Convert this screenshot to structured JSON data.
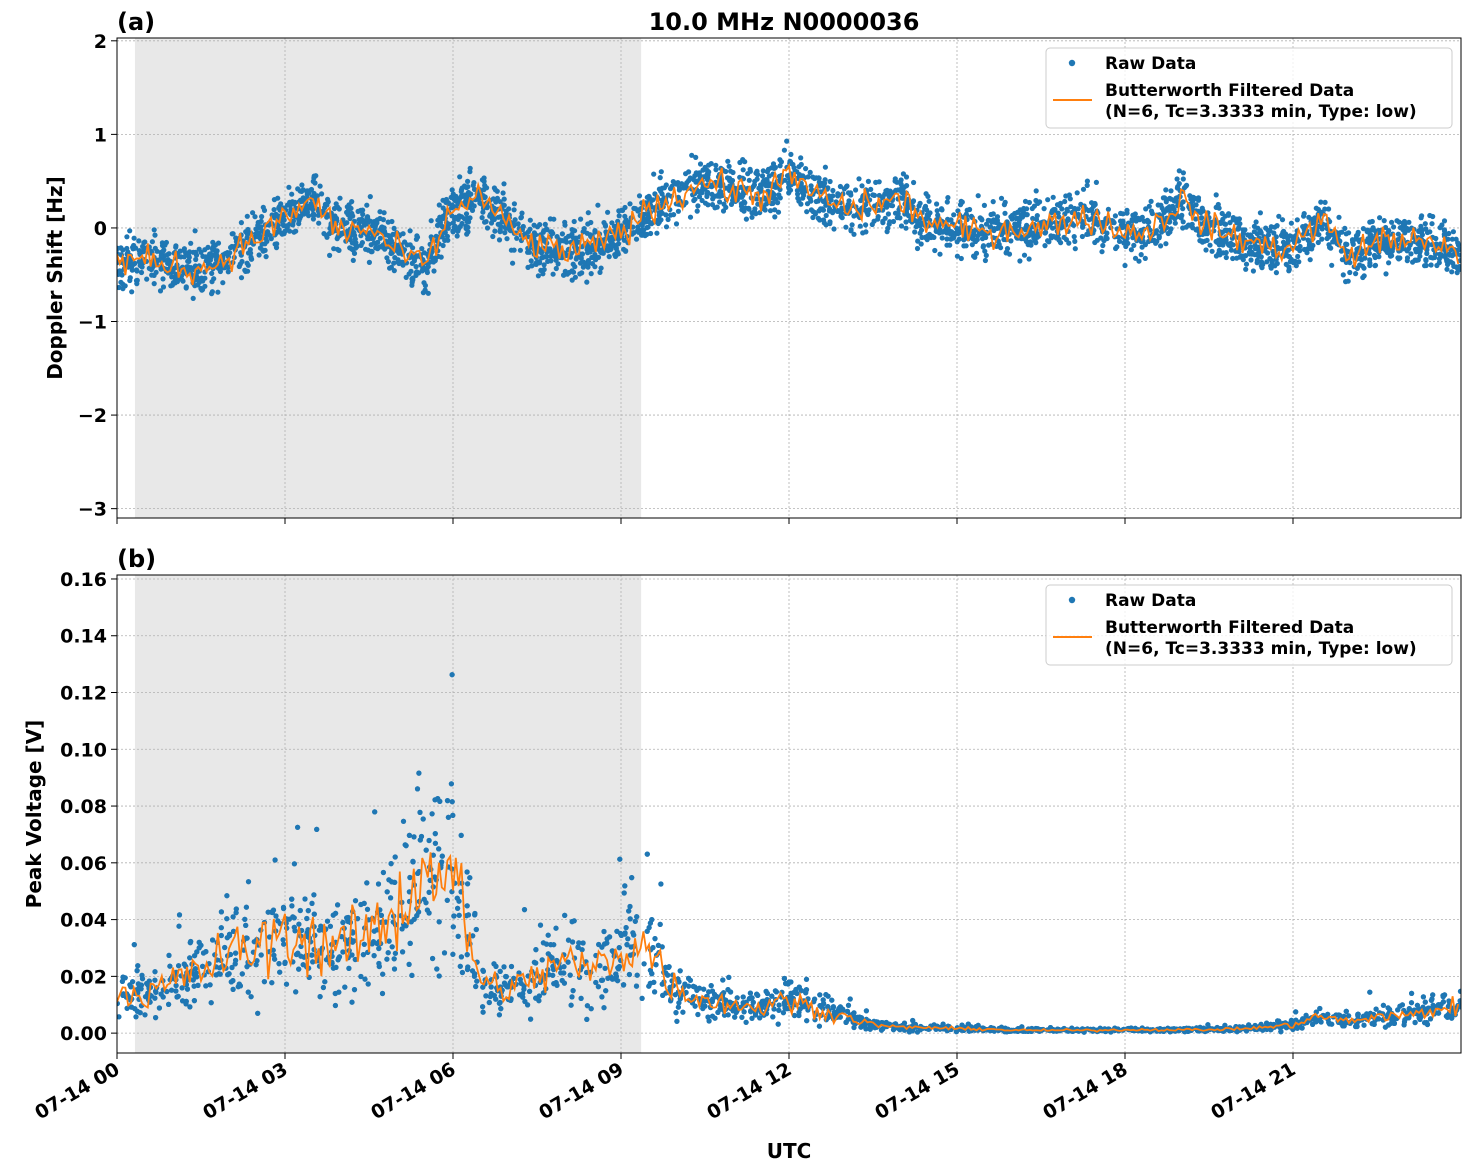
{
  "title": "10.0 MHz N0000036",
  "xlabel": "UTC",
  "x_tick_labels": [
    "07-14 00",
    "07-14 03",
    "07-14 06",
    "07-14 09",
    "07-14 12",
    "07-14 15",
    "07-14 18",
    "07-14 21"
  ],
  "colors": {
    "raw": "#1f77b4",
    "filtered": "#ff7f0e",
    "shade": "#e8e8e8"
  },
  "chart_data": [
    {
      "type": "scatter+line",
      "panel_label": "(a)",
      "ylabel": "Doppler Shift [Hz]",
      "xlim_hours_utc": [
        0,
        24
      ],
      "ylim": [
        -3.1,
        2.03
      ],
      "y_ticks": [
        2,
        1,
        0,
        -1,
        -2,
        -3
      ],
      "y_tick_labels": [
        "2",
        "1",
        "0",
        "−1",
        "−2",
        "−3"
      ],
      "grid": true,
      "legend_placement": "top-right",
      "legend": [
        "Raw Data",
        "Butterworth Filtered Data",
        "(N=6, Tc=3.3333 min, Type: low)"
      ],
      "shaded_interval_hours_utc": [
        0.32,
        9.36
      ],
      "filtered_x_hours": 0.5,
      "filtered_values": [
        -0.35,
        -0.35,
        -0.4,
        -0.45,
        -0.3,
        -0.1,
        0.1,
        0.3,
        -0.05,
        0.0,
        -0.25,
        -0.4,
        0.2,
        0.35,
        0.0,
        -0.2,
        -0.25,
        -0.2,
        -0.05,
        0.2,
        0.35,
        0.5,
        0.4,
        0.35,
        0.55,
        0.35,
        0.2,
        0.25,
        0.3,
        0.05,
        0.0,
        -0.05,
        0.0,
        0.0,
        0.1,
        0.1,
        -0.05,
        0.0,
        0.3,
        0.0,
        -0.1,
        -0.2,
        -0.2,
        0.1,
        -0.3,
        -0.15,
        -0.1,
        -0.2,
        -0.3
      ],
      "raw_spread": 0.28
    },
    {
      "type": "scatter+line",
      "panel_label": "(b)",
      "ylabel": "Peak Voltage [V]",
      "xlim_hours_utc": [
        0,
        24
      ],
      "ylim": [
        -0.007,
        0.1614
      ],
      "y_ticks": [
        0.16,
        0.14,
        0.12,
        0.1,
        0.08,
        0.06,
        0.04,
        0.02,
        0.0
      ],
      "y_tick_labels": [
        "0.16",
        "0.14",
        "0.12",
        "0.10",
        "0.08",
        "0.06",
        "0.04",
        "0.02",
        "0.00"
      ],
      "grid": true,
      "legend_placement": "top-right",
      "legend": [
        "Raw Data",
        "Butterworth Filtered Data",
        "(N=6, Tc=3.3333 min, Type: low)"
      ],
      "shaded_interval_hours_utc": [
        0.32,
        9.36
      ],
      "filtered_x_hours": 0.5,
      "filtered_values": [
        0.015,
        0.013,
        0.018,
        0.022,
        0.028,
        0.03,
        0.035,
        0.032,
        0.03,
        0.035,
        0.042,
        0.06,
        0.055,
        0.018,
        0.015,
        0.02,
        0.025,
        0.022,
        0.03,
        0.03,
        0.015,
        0.012,
        0.01,
        0.009,
        0.012,
        0.008,
        0.006,
        0.003,
        0.002,
        0.002,
        0.0015,
        0.0015,
        0.001,
        0.001,
        0.001,
        0.001,
        0.0012,
        0.0012,
        0.0012,
        0.0012,
        0.0015,
        0.002,
        0.003,
        0.006,
        0.004,
        0.006,
        0.006,
        0.008,
        0.01
      ],
      "raw_spread_fraction": 0.6
    }
  ]
}
